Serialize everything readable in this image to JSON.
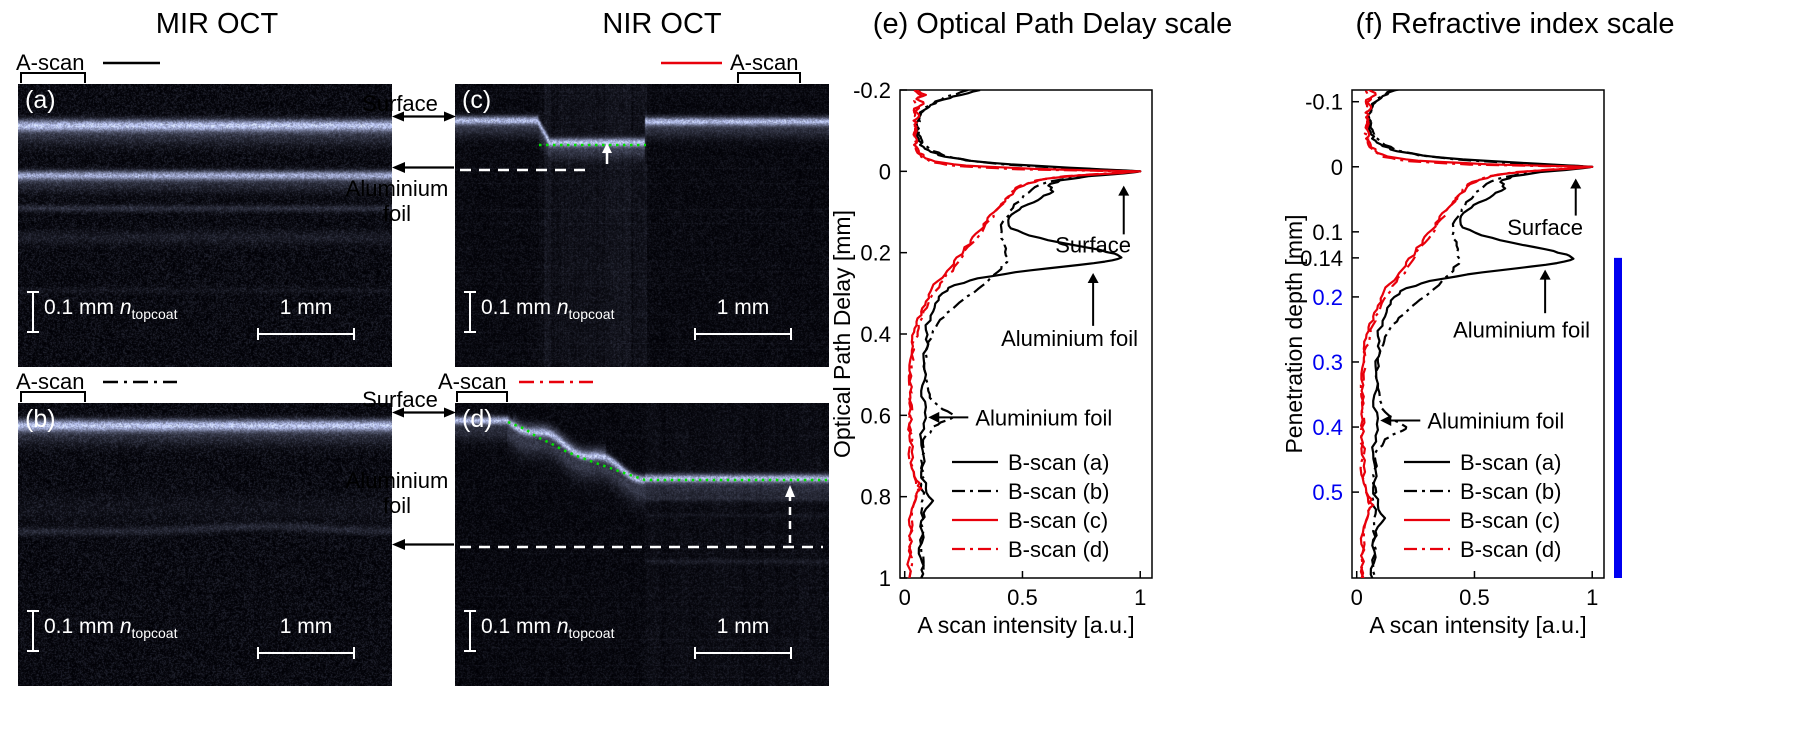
{
  "titles": {
    "mir": "MIR OCT",
    "nir": "NIR OCT"
  },
  "ascan_labels": {
    "a": "A-scan",
    "b": "A-scan",
    "c": "A-scan",
    "d": "A-scan"
  },
  "oct_panels": {
    "a": {
      "tag": "(a)",
      "scale_v": "0.1 mm",
      "scale_v_n": "n",
      "scale_v_sub": "topcoat",
      "scale_h": "1 mm"
    },
    "b": {
      "tag": "(b)",
      "scale_v": "0.1 mm",
      "scale_v_n": "n",
      "scale_v_sub": "topcoat",
      "scale_h": "1 mm"
    },
    "c": {
      "tag": "(c)",
      "scale_v": "0.1 mm",
      "scale_v_n": "n",
      "scale_v_sub": "topcoat",
      "scale_h": "1 mm"
    },
    "d": {
      "tag": "(d)",
      "scale_v": "0.1 mm",
      "scale_v_n": "n",
      "scale_v_sub": "topcoat",
      "scale_h": "1 mm"
    }
  },
  "between_annotations": {
    "surface_top": "Surface",
    "foil_top": [
      "Aluminium",
      "foil"
    ],
    "surface_bottom": "Surface",
    "foil_bottom": [
      "Aluminium",
      "foil"
    ]
  },
  "colors": {
    "nir_red": "#e8000b",
    "surface_overlay_green": "#00e100",
    "penetration_blue": "#0000f0"
  },
  "chart_data": {
    "type": "line",
    "series": [
      {
        "name": "B-scan (a)",
        "color": "#000000",
        "style": "solid",
        "points": [
          [
            -0.2,
            0.32
          ],
          [
            -0.188,
            0.24
          ],
          [
            -0.176,
            0.16
          ],
          [
            -0.163,
            0.11
          ],
          [
            -0.15,
            0.08
          ],
          [
            -0.135,
            0.06
          ],
          [
            -0.12,
            0.05
          ],
          [
            -0.105,
            0.06
          ],
          [
            -0.09,
            0.05
          ],
          [
            -0.075,
            0.06
          ],
          [
            -0.06,
            0.08
          ],
          [
            -0.048,
            0.11
          ],
          [
            -0.036,
            0.17
          ],
          [
            -0.026,
            0.28
          ],
          [
            -0.017,
            0.45
          ],
          [
            -0.009,
            0.7
          ],
          [
            -0.003,
            0.9
          ],
          [
            0.0,
            1.0
          ],
          [
            0.005,
            0.93
          ],
          [
            0.012,
            0.78
          ],
          [
            0.022,
            0.66
          ],
          [
            0.035,
            0.61
          ],
          [
            0.05,
            0.63
          ],
          [
            0.065,
            0.58
          ],
          [
            0.082,
            0.52
          ],
          [
            0.1,
            0.47
          ],
          [
            0.12,
            0.44
          ],
          [
            0.14,
            0.45
          ],
          [
            0.158,
            0.53
          ],
          [
            0.175,
            0.66
          ],
          [
            0.19,
            0.8
          ],
          [
            0.202,
            0.89
          ],
          [
            0.212,
            0.92
          ],
          [
            0.222,
            0.85
          ],
          [
            0.234,
            0.68
          ],
          [
            0.248,
            0.47
          ],
          [
            0.263,
            0.31
          ],
          [
            0.28,
            0.21
          ],
          [
            0.3,
            0.16
          ],
          [
            0.325,
            0.13
          ],
          [
            0.355,
            0.11
          ],
          [
            0.39,
            0.09
          ],
          [
            0.425,
            0.1
          ],
          [
            0.46,
            0.08
          ],
          [
            0.5,
            0.09
          ],
          [
            0.54,
            0.07
          ],
          [
            0.58,
            0.09
          ],
          [
            0.62,
            0.08
          ],
          [
            0.66,
            0.07
          ],
          [
            0.7,
            0.08
          ],
          [
            0.74,
            0.07
          ],
          [
            0.78,
            0.09
          ],
          [
            0.81,
            0.12
          ],
          [
            0.83,
            0.09
          ],
          [
            0.86,
            0.07
          ],
          [
            0.9,
            0.08
          ],
          [
            0.94,
            0.06
          ],
          [
            0.97,
            0.08
          ],
          [
            1.0,
            0.07
          ]
        ]
      },
      {
        "name": "B-scan (b)",
        "color": "#000000",
        "style": "dash-dot",
        "points": [
          [
            -0.2,
            0.27
          ],
          [
            -0.186,
            0.19
          ],
          [
            -0.172,
            0.13
          ],
          [
            -0.158,
            0.09
          ],
          [
            -0.144,
            0.07
          ],
          [
            -0.128,
            0.06
          ],
          [
            -0.112,
            0.05
          ],
          [
            -0.096,
            0.06
          ],
          [
            -0.08,
            0.07
          ],
          [
            -0.064,
            0.09
          ],
          [
            -0.05,
            0.12
          ],
          [
            -0.038,
            0.17
          ],
          [
            -0.027,
            0.26
          ],
          [
            -0.017,
            0.42
          ],
          [
            -0.008,
            0.68
          ],
          [
            0.0,
            1.0
          ],
          [
            0.007,
            0.86
          ],
          [
            0.016,
            0.7
          ],
          [
            0.028,
            0.6
          ],
          [
            0.045,
            0.54
          ],
          [
            0.065,
            0.5
          ],
          [
            0.09,
            0.46
          ],
          [
            0.115,
            0.43
          ],
          [
            0.14,
            0.41
          ],
          [
            0.165,
            0.41
          ],
          [
            0.19,
            0.43
          ],
          [
            0.215,
            0.44
          ],
          [
            0.24,
            0.41
          ],
          [
            0.265,
            0.36
          ],
          [
            0.29,
            0.31
          ],
          [
            0.315,
            0.25
          ],
          [
            0.34,
            0.2
          ],
          [
            0.365,
            0.15
          ],
          [
            0.392,
            0.12
          ],
          [
            0.42,
            0.1
          ],
          [
            0.45,
            0.09
          ],
          [
            0.48,
            0.08
          ],
          [
            0.51,
            0.09
          ],
          [
            0.54,
            0.1
          ],
          [
            0.565,
            0.12
          ],
          [
            0.585,
            0.16
          ],
          [
            0.6,
            0.21
          ],
          [
            0.612,
            0.18
          ],
          [
            0.628,
            0.12
          ],
          [
            0.65,
            0.09
          ],
          [
            0.68,
            0.08
          ],
          [
            0.71,
            0.07
          ],
          [
            0.74,
            0.08
          ],
          [
            0.77,
            0.07
          ],
          [
            0.8,
            0.08
          ],
          [
            0.84,
            0.07
          ],
          [
            0.88,
            0.08
          ],
          [
            0.92,
            0.07
          ],
          [
            0.96,
            0.08
          ],
          [
            1.0,
            0.07
          ]
        ]
      },
      {
        "name": "B-scan (c)",
        "color": "#e8000b",
        "style": "solid",
        "points": [
          [
            -0.2,
            0.05
          ],
          [
            -0.188,
            0.09
          ],
          [
            -0.178,
            0.05
          ],
          [
            -0.166,
            0.08
          ],
          [
            -0.154,
            0.04
          ],
          [
            -0.14,
            0.06
          ],
          [
            -0.125,
            0.04
          ],
          [
            -0.11,
            0.05
          ],
          [
            -0.095,
            0.04
          ],
          [
            -0.08,
            0.05
          ],
          [
            -0.065,
            0.04
          ],
          [
            -0.05,
            0.06
          ],
          [
            -0.036,
            0.08
          ],
          [
            -0.024,
            0.13
          ],
          [
            -0.014,
            0.26
          ],
          [
            -0.006,
            0.55
          ],
          [
            -0.002,
            0.82
          ],
          [
            0.0,
            1.0
          ],
          [
            0.004,
            0.92
          ],
          [
            0.01,
            0.74
          ],
          [
            0.018,
            0.6
          ],
          [
            0.03,
            0.52
          ],
          [
            0.045,
            0.47
          ],
          [
            0.062,
            0.44
          ],
          [
            0.08,
            0.41
          ],
          [
            0.1,
            0.38
          ],
          [
            0.122,
            0.35
          ],
          [
            0.145,
            0.32
          ],
          [
            0.17,
            0.28
          ],
          [
            0.195,
            0.25
          ],
          [
            0.22,
            0.21
          ],
          [
            0.245,
            0.18
          ],
          [
            0.27,
            0.14
          ],
          [
            0.295,
            0.11
          ],
          [
            0.32,
            0.09
          ],
          [
            0.345,
            0.07
          ],
          [
            0.37,
            0.05
          ],
          [
            0.395,
            0.04
          ],
          [
            0.42,
            0.03
          ],
          [
            0.45,
            0.03
          ],
          [
            0.49,
            0.02
          ],
          [
            0.53,
            0.03
          ],
          [
            0.57,
            0.02
          ],
          [
            0.61,
            0.03
          ],
          [
            0.65,
            0.02
          ],
          [
            0.69,
            0.03
          ],
          [
            0.73,
            0.03
          ],
          [
            0.76,
            0.05
          ],
          [
            0.78,
            0.07
          ],
          [
            0.8,
            0.05
          ],
          [
            0.83,
            0.03
          ],
          [
            0.87,
            0.02
          ],
          [
            0.91,
            0.03
          ],
          [
            0.95,
            0.02
          ],
          [
            1.0,
            0.02
          ]
        ]
      },
      {
        "name": "B-scan (d)",
        "color": "#e8000b",
        "style": "dash-dot",
        "points": [
          [
            -0.2,
            0.04
          ],
          [
            -0.186,
            0.07
          ],
          [
            -0.174,
            0.04
          ],
          [
            -0.16,
            0.06
          ],
          [
            -0.146,
            0.04
          ],
          [
            -0.13,
            0.05
          ],
          [
            -0.114,
            0.04
          ],
          [
            -0.098,
            0.05
          ],
          [
            -0.082,
            0.04
          ],
          [
            -0.066,
            0.05
          ],
          [
            -0.05,
            0.05
          ],
          [
            -0.036,
            0.07
          ],
          [
            -0.023,
            0.11
          ],
          [
            -0.013,
            0.22
          ],
          [
            -0.005,
            0.48
          ],
          [
            0.0,
            0.97
          ],
          [
            0.005,
            0.86
          ],
          [
            0.012,
            0.68
          ],
          [
            0.022,
            0.56
          ],
          [
            0.035,
            0.49
          ],
          [
            0.052,
            0.45
          ],
          [
            0.072,
            0.42
          ],
          [
            0.095,
            0.39
          ],
          [
            0.12,
            0.36
          ],
          [
            0.148,
            0.33
          ],
          [
            0.175,
            0.29
          ],
          [
            0.205,
            0.25
          ],
          [
            0.235,
            0.21
          ],
          [
            0.265,
            0.17
          ],
          [
            0.295,
            0.13
          ],
          [
            0.325,
            0.1
          ],
          [
            0.355,
            0.08
          ],
          [
            0.385,
            0.06
          ],
          [
            0.415,
            0.04
          ],
          [
            0.45,
            0.03
          ],
          [
            0.49,
            0.03
          ],
          [
            0.53,
            0.02
          ],
          [
            0.575,
            0.03
          ],
          [
            0.62,
            0.02
          ],
          [
            0.665,
            0.03
          ],
          [
            0.71,
            0.02
          ],
          [
            0.75,
            0.04
          ],
          [
            0.785,
            0.06
          ],
          [
            0.815,
            0.04
          ],
          [
            0.855,
            0.03
          ],
          [
            0.9,
            0.02
          ],
          [
            0.95,
            0.03
          ],
          [
            1.0,
            0.02
          ]
        ]
      }
    ],
    "charts": [
      {
        "id": "e",
        "title": "(e) Optical Path Delay scale",
        "xlabel": "A scan intensity [a.u.]",
        "ylabel": "Optical Path Delay [mm]",
        "xlim": [
          -0.02,
          1.05
        ],
        "ylim": [
          -0.2,
          1.0
        ],
        "depth_scale": 1.0,
        "xticks": [
          {
            "v": 0,
            "label": "0"
          },
          {
            "v": 0.5,
            "label": "0.5"
          },
          {
            "v": 1,
            "label": "1"
          }
        ],
        "yticks": [
          {
            "v": -0.2,
            "label": "-0.2"
          },
          {
            "v": 0,
            "label": "0"
          },
          {
            "v": 0.2,
            "label": "0.2"
          },
          {
            "v": 0.4,
            "label": "0.4"
          },
          {
            "v": 0.6,
            "label": "0.6"
          },
          {
            "v": 0.8,
            "label": "0.8"
          },
          {
            "v": 1,
            "label": "1"
          }
        ],
        "annotations": [
          {
            "text": "Surface",
            "dir": "up",
            "x": 0.93,
            "y_from": 0.155,
            "y_to": 0.035,
            "tx": 0.8,
            "ty": 0.2
          },
          {
            "text": "Aluminium foil",
            "dir": "up",
            "x": 0.8,
            "y_from": 0.38,
            "y_to": 0.25,
            "tx": 0.7,
            "ty": 0.43
          },
          {
            "text": "Aluminium foil",
            "dir": "left",
            "y": 0.605,
            "x_from": 0.27,
            "x_to": 0.1,
            "tx": 0.3,
            "ty": 0.605
          }
        ],
        "legend": [
          "B-scan (a)",
          "B-scan (b)",
          "B-scan (c)",
          "B-scan (d)"
        ]
      },
      {
        "id": "f",
        "title": "(f) Refractive index scale",
        "xlabel": "A scan intensity [a.u.]",
        "ylabel": "Penetration depth [mm]",
        "xlim": [
          -0.02,
          1.05
        ],
        "ylim": [
          -0.118,
          0.632
        ],
        "depth_scale": 1.5,
        "xticks": [
          {
            "v": 0,
            "label": "0"
          },
          {
            "v": 0.5,
            "label": "0.5"
          },
          {
            "v": 1,
            "label": "1"
          }
        ],
        "yticks": [
          {
            "v": -0.1,
            "label": "-0.1"
          },
          {
            "v": 0,
            "label": "0"
          },
          {
            "v": 0.1,
            "label": "0.1"
          },
          {
            "v": 0.14,
            "label": "0.14"
          },
          {
            "v": 0.2,
            "label": "0.2",
            "color": "#0000f0"
          },
          {
            "v": 0.3,
            "label": "0.3",
            "color": "#0000f0"
          },
          {
            "v": 0.4,
            "label": "0.4",
            "color": "#0000f0"
          },
          {
            "v": 0.5,
            "label": "0.5",
            "color": "#0000f0"
          }
        ],
        "annotations": [
          {
            "text": "Surface",
            "dir": "up",
            "x": 0.93,
            "y_from": 0.075,
            "y_to": 0.018,
            "tx": 0.8,
            "ty": 0.105
          },
          {
            "text": "Aluminium foil",
            "dir": "up",
            "x": 0.8,
            "y_from": 0.225,
            "y_to": 0.158,
            "tx": 0.7,
            "ty": 0.262
          },
          {
            "text": "Aluminium foil",
            "dir": "left",
            "y": 0.39,
            "x_from": 0.27,
            "x_to": 0.1,
            "tx": 0.3,
            "ty": 0.39
          }
        ],
        "blue_bar": {
          "from": 0.14,
          "to": 0.632,
          "color": "#0000f0"
        },
        "legend": [
          "B-scan (a)",
          "B-scan (b)",
          "B-scan (c)",
          "B-scan (d)"
        ]
      }
    ]
  }
}
